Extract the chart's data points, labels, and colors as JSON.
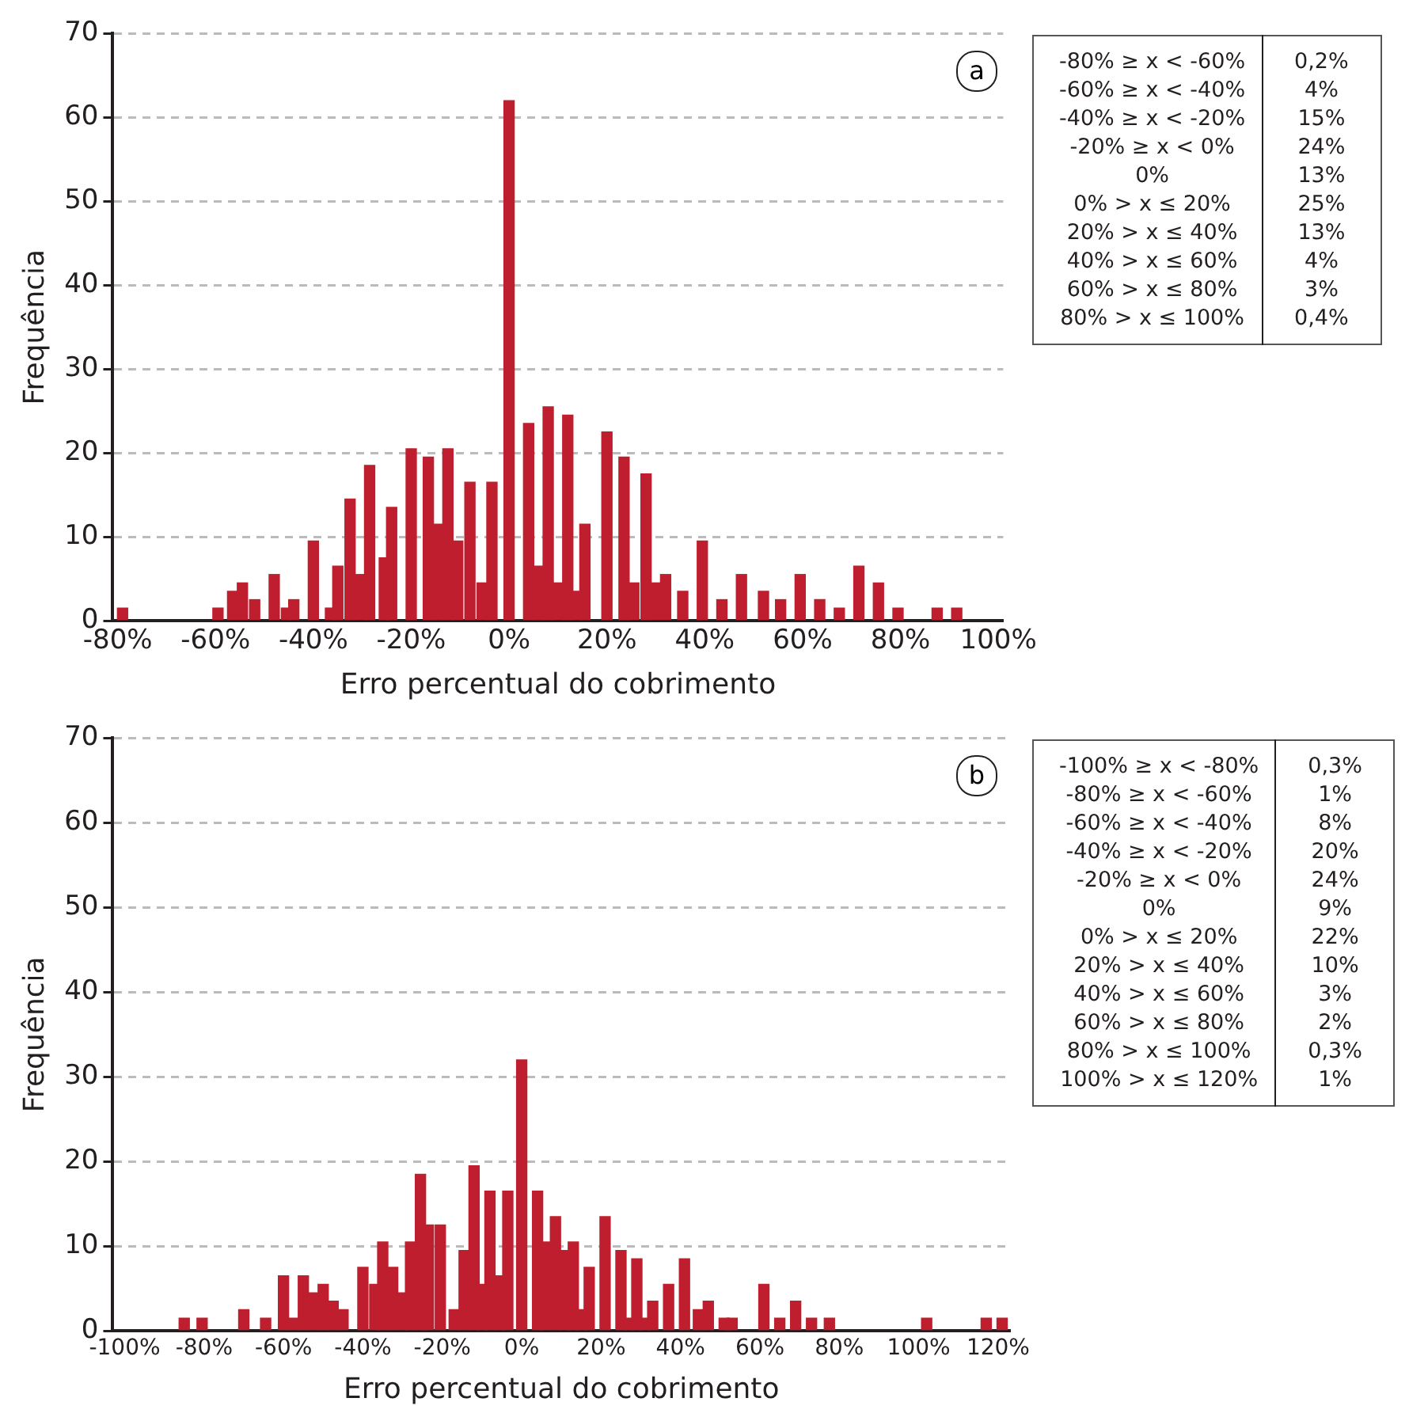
{
  "chart_data": [
    {
      "type": "bar",
      "xlabel": "Erro percentual do cobrimento",
      "ylabel": "Frequência",
      "color": "#be1e2d",
      "grid": "y",
      "x": [
        -79,
        -59.5,
        -56.5,
        -54.5,
        -52,
        -48,
        -45.5,
        -44,
        -40,
        -36.5,
        -35,
        -32.5,
        -30.5,
        -28.5,
        -25.5,
        -24,
        -20,
        -16.5,
        -14.5,
        -12.5,
        -10.5,
        -8,
        -5.5,
        -3.5,
        0,
        4,
        6,
        8,
        10,
        12,
        14,
        15.5,
        20,
        23.5,
        25.5,
        28,
        30,
        32,
        35.5,
        39.5,
        43.5,
        47.5,
        52,
        55.5,
        59.5,
        63.5,
        67.5,
        71.5,
        75.5,
        79.5,
        87.5,
        91.5
      ],
      "values": [
        1.5,
        1.5,
        3.5,
        4.5,
        2.5,
        5.5,
        1.5,
        2.5,
        9.5,
        1.5,
        6.5,
        14.5,
        5.5,
        18.5,
        7.5,
        13.5,
        20.5,
        19.5,
        11.5,
        20.5,
        9.5,
        16.5,
        4.5,
        16.5,
        62,
        23.5,
        6.5,
        25.5,
        4.5,
        24.5,
        3.5,
        11.5,
        22.5,
        19.5,
        4.5,
        17.5,
        4.5,
        5.5,
        3.5,
        9.5,
        2.5,
        5.5,
        3.5,
        2.5,
        5.5,
        2.5,
        1.5,
        6.5,
        4.5,
        1.5,
        1.5,
        1.5
      ],
      "xlim": [
        -81,
        101
      ],
      "xticks": [
        {
          "value": -80,
          "label": "-80%"
        },
        {
          "value": -60,
          "label": "-60%"
        },
        {
          "value": -40,
          "label": "-40%"
        },
        {
          "value": -20,
          "label": "-20%"
        },
        {
          "value": 0,
          "label": "0%"
        },
        {
          "value": 20,
          "label": "20%"
        },
        {
          "value": 40,
          "label": "40%"
        },
        {
          "value": 60,
          "label": "60%"
        },
        {
          "value": 80,
          "label": "80%"
        },
        {
          "value": 100,
          "label": "100%"
        }
      ],
      "ylim": [
        0,
        70
      ],
      "yticks": [
        0,
        10,
        20,
        30,
        40,
        50,
        60,
        70
      ],
      "annotations": [
        "a",
        "-80% ≥ x < -60%",
        "0,2%",
        "-60% ≥ x < -40%",
        "4%",
        "-40% ≥ x < -20%",
        "15%",
        "-20% ≥ x < 0%",
        "24%",
        "0%",
        "13%",
        "0% > x ≤ 20%",
        "25%",
        "20% > x ≤ 40%",
        "13%",
        "40% > x ≤ 60%",
        "4%",
        "60% > x ≤ 80%",
        "3%",
        "80% > x ≤ 100%",
        "0,4%"
      ]
    },
    {
      "type": "bar",
      "xlabel": "Erro percentual do cobrimento",
      "ylabel": "Frequência",
      "color": "#be1e2d",
      "grid": "y",
      "x": [
        -85,
        -80.5,
        -70,
        -64.5,
        -60,
        -57.5,
        -55,
        -52.5,
        -50,
        -47.5,
        -45,
        -40,
        -37,
        -35,
        -32.5,
        -30,
        -28,
        -25.5,
        -23.5,
        -20.5,
        -17,
        -14.5,
        -12,
        -10,
        -8,
        -5.5,
        -3.5,
        0,
        4,
        6,
        8.5,
        11,
        13,
        15,
        17,
        21,
        25,
        27,
        29,
        31,
        33,
        37,
        41,
        44.5,
        47,
        51,
        53,
        61,
        65,
        69,
        73,
        77.5,
        102,
        117,
        121
      ],
      "values": [
        1.5,
        1.5,
        2.5,
        1.5,
        6.5,
        1.5,
        6.5,
        4.5,
        5.5,
        3.5,
        2.5,
        7.5,
        5.5,
        10.5,
        7.5,
        4.5,
        10.5,
        18.5,
        12.5,
        12.5,
        2.5,
        9.5,
        19.5,
        5.5,
        16.5,
        6.5,
        16.5,
        32,
        16.5,
        10.5,
        13.5,
        9.5,
        10.5,
        2.5,
        7.5,
        13.5,
        9.5,
        1.5,
        8.5,
        1.5,
        3.5,
        5.5,
        8.5,
        2.5,
        3.5,
        1.5,
        1.5,
        5.5,
        1.5,
        3.5,
        1.5,
        1.5,
        1.5,
        1.5,
        1.5
      ],
      "xlim": [
        -103,
        123
      ],
      "xticks": [
        {
          "value": -100,
          "label": "-100%"
        },
        {
          "value": -80,
          "label": "-80%"
        },
        {
          "value": -60,
          "label": "-60%"
        },
        {
          "value": -40,
          "label": "-40%"
        },
        {
          "value": -20,
          "label": "-20%"
        },
        {
          "value": 0,
          "label": "0%"
        },
        {
          "value": 20,
          "label": "20%"
        },
        {
          "value": 40,
          "label": "40%"
        },
        {
          "value": 60,
          "label": "60%"
        },
        {
          "value": 80,
          "label": "80%"
        },
        {
          "value": 100,
          "label": "100%"
        },
        {
          "value": 120,
          "label": "120%"
        }
      ],
      "ylim": [
        0,
        70
      ],
      "yticks": [
        0,
        10,
        20,
        30,
        40,
        50,
        60,
        70
      ],
      "annotations": [
        "b",
        "-100% ≥ x < -80%",
        "0,3%",
        "-80% ≥ x < -60%",
        "1%",
        "-60% ≥ x < -40%",
        "8%",
        "-40% ≥ x < -20%",
        "20%",
        "-20% ≥ x < 0%",
        "24%",
        "0%",
        "9%",
        "0% > x ≤ 20%",
        "22%",
        "20% > x ≤ 40%",
        "10%",
        "40% > x ≤ 60%",
        "3%",
        "60% > x ≤ 80%",
        "2%",
        "80% > x ≤ 100%",
        "0,3%",
        "100% > x ≤ 120%",
        "1%"
      ]
    }
  ]
}
